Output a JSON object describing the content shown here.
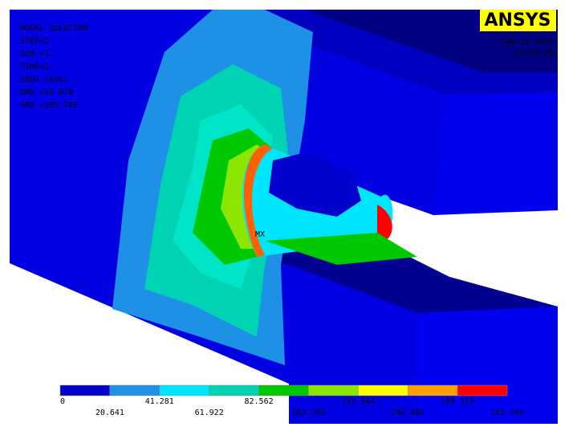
{
  "info": {
    "lines": [
      "NODAL SOLUTION",
      "STEP=1",
      "SUB =1",
      "TIME=1",
      "SEQV     (AVG)",
      "DMX =15.078",
      "SMX =185.766"
    ]
  },
  "logo": "ANSYS",
  "date": "JAN 11 2006",
  "time": "23:54:29",
  "marker": "MX",
  "legend": {
    "labels": [
      "0",
      "20.641",
      "41.281",
      "61.922",
      "82.562",
      "103.203",
      "123.844",
      "144.484",
      "165.125",
      "185.766"
    ],
    "colors": [
      "#0000cc",
      "#1e90e6",
      "#00e5ff",
      "#00d2b4",
      "#00c800",
      "#8ce600",
      "#ffff00",
      "#ffa000",
      "#ff0000"
    ]
  }
}
